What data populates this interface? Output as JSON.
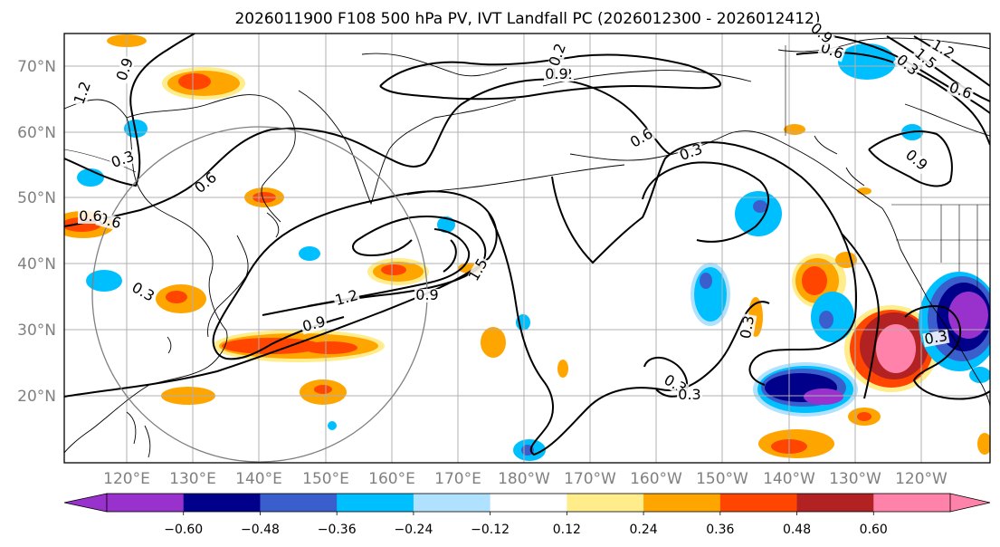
{
  "title": "2026011900 F108 500 hPa PV, IVT Landfall PC (2026012300 - 2026012412)",
  "lat_labels": [
    "70°N",
    "60°N",
    "50°N",
    "40°N",
    "30°N",
    "20°N"
  ],
  "lon_labels": [
    "120°E",
    "130°E",
    "140°E",
    "150°E",
    "160°E",
    "170°E",
    "180°W",
    "170°W",
    "160°W",
    "150°W",
    "140°W",
    "130°W",
    "120°W"
  ],
  "colorbar": {
    "ticks": [
      "−0.60",
      "−0.48",
      "−0.36",
      "−0.24",
      "−0.12",
      "0.12",
      "0.24",
      "0.36",
      "0.48",
      "0.60"
    ],
    "colors": [
      "#9932CC",
      "#00008B",
      "#3A5FCD",
      "#00BFFF",
      "#B0E2FF",
      "#FFFFFF",
      "#FFEC8B",
      "#FFA500",
      "#FF4500",
      "#B22222",
      "#FF82AB"
    ]
  },
  "contour_labels": [
    "0.9",
    "1.2",
    "0.6",
    "0.3",
    "0.3",
    "0.6",
    "0.9",
    "1.2",
    "0.9",
    "1.5",
    "1.2",
    "0.6",
    "0.3",
    "0.3",
    "0.3",
    "0.3",
    "0.6",
    "0.9",
    "0.3",
    "0.6",
    "1.5",
    "1.2",
    "0.3",
    "0.6",
    "0.2",
    "0.9",
    "0.9"
  ]
}
